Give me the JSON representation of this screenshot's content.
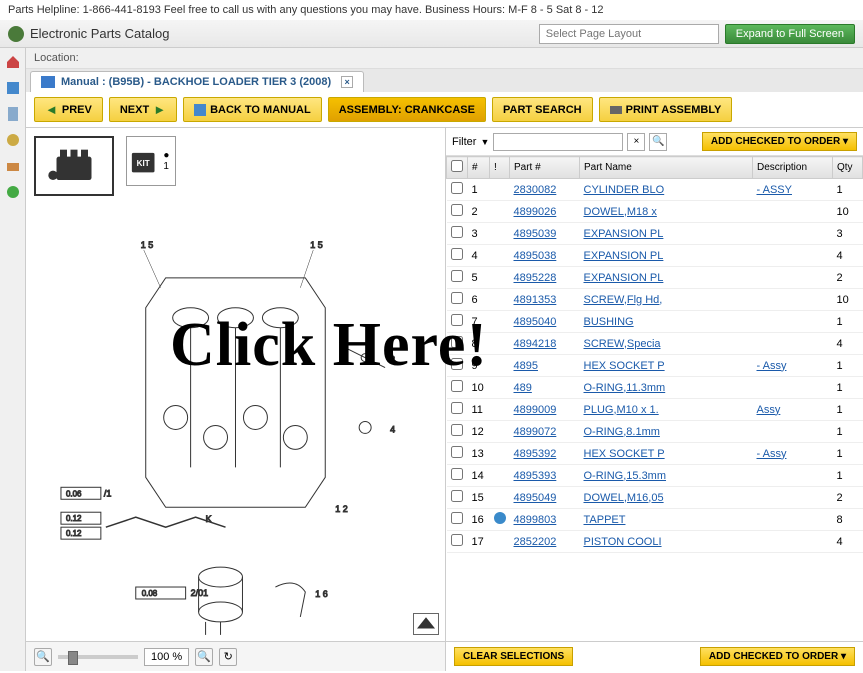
{
  "topbar": "Parts Helpline: 1-866-441-8193 Feel free to call us with any questions you may have. Business Hours: M-F 8 - 5 Sat 8 - 12",
  "header": {
    "title": "Electronic Parts Catalog",
    "select_placeholder": "Select Page Layout",
    "expand": "Expand to Full Screen"
  },
  "location_label": "Location:",
  "tab": {
    "label": "Manual : (B95B) - BACKHOE LOADER TIER 3 (2008)"
  },
  "toolbar": {
    "prev": "PREV",
    "next": "NEXT",
    "back": "BACK TO MANUAL",
    "assembly": "ASSEMBLY: CRANKCASE",
    "search": "PART SEARCH",
    "print": "PRINT ASSEMBLY"
  },
  "filter": {
    "label": "Filter",
    "add_order": "ADD CHECKED TO ORDER ▾"
  },
  "columns": {
    "num": "#",
    "info": "!",
    "part": "Part #",
    "name": "Part Name",
    "desc": "Description",
    "qty": "Qty"
  },
  "rows": [
    {
      "n": "1",
      "part": "2830082",
      "name": "CYLINDER BLO",
      "desc": "- ASSY",
      "qty": "1"
    },
    {
      "n": "2",
      "part": "4899026",
      "name": "DOWEL,M18 x",
      "desc": "",
      "qty": "10"
    },
    {
      "n": "3",
      "part": "4895039",
      "name": "EXPANSION PL",
      "desc": "",
      "qty": "3"
    },
    {
      "n": "4",
      "part": "4895038",
      "name": "EXPANSION PL",
      "desc": "",
      "qty": "4"
    },
    {
      "n": "5",
      "part": "4895228",
      "name": "EXPANSION PL",
      "desc": "",
      "qty": "2"
    },
    {
      "n": "6",
      "part": "4891353",
      "name": "SCREW,Flg Hd,",
      "desc": "",
      "qty": "10"
    },
    {
      "n": "7",
      "part": "4895040",
      "name": "BUSHING",
      "desc": "",
      "qty": "1"
    },
    {
      "n": "8",
      "part": "4894218",
      "name": "SCREW,Specia",
      "desc": "",
      "qty": "4"
    },
    {
      "n": "9",
      "part": "4895",
      "name": "HEX SOCKET P",
      "desc": "- Assy",
      "qty": "1"
    },
    {
      "n": "10",
      "part": "489",
      "name": "O-RING,11.3mm",
      "desc": "",
      "qty": "1"
    },
    {
      "n": "11",
      "part": "4899009",
      "name": "PLUG,M10 x 1.",
      "desc": "Assy",
      "qty": "1"
    },
    {
      "n": "12",
      "part": "4899072",
      "name": "O-RING,8.1mm",
      "desc": "",
      "qty": "1"
    },
    {
      "n": "13",
      "part": "4895392",
      "name": "HEX SOCKET P",
      "desc": "- Assy",
      "qty": "1"
    },
    {
      "n": "14",
      "part": "4895393",
      "name": "O-RING,15.3mm",
      "desc": "",
      "qty": "1"
    },
    {
      "n": "15",
      "part": "4895049",
      "name": "DOWEL,M16,05",
      "desc": "",
      "qty": "2"
    },
    {
      "n": "16",
      "part": "4899803",
      "name": "TAPPET",
      "desc": "",
      "qty": "8",
      "info": true
    },
    {
      "n": "17",
      "part": "2852202",
      "name": "PISTON COOLI",
      "desc": "",
      "qty": "4"
    }
  ],
  "zoom": "100 %",
  "bottom": {
    "clear": "CLEAR SELECTIONS",
    "add": "ADD CHECKED TO ORDER ▾"
  },
  "overlay": "Click Here!"
}
